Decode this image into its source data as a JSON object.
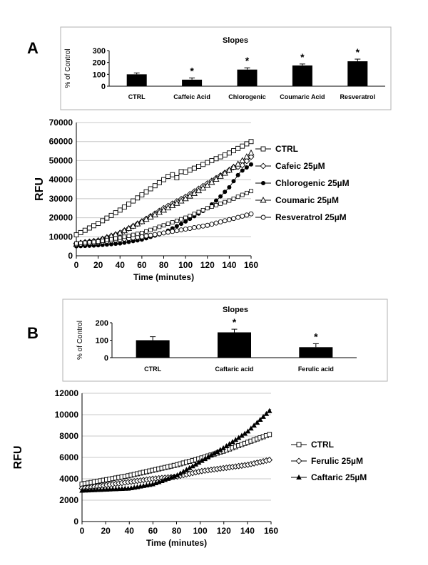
{
  "panels": {
    "a": {
      "label": "A"
    },
    "b": {
      "label": "B"
    }
  },
  "chart_data": [
    {
      "id": "a_slopes",
      "type": "bar",
      "title": "Slopes",
      "ylabel": "% of Control",
      "xlabel": "",
      "categories": [
        "CTRL",
        "Caffeic Acid",
        "Chlorogenic",
        "Coumaric Acid",
        "Resveratrol"
      ],
      "values": [
        100,
        55,
        140,
        175,
        210
      ],
      "errors": [
        12,
        15,
        15,
        12,
        18
      ],
      "significant": [
        false,
        true,
        true,
        true,
        true
      ],
      "significance_marker": "*",
      "ylim": [
        0,
        300
      ],
      "yticks": [
        "0",
        "100",
        "200",
        "300"
      ],
      "bar_color": "#000000",
      "grid": false,
      "box": true
    },
    {
      "id": "a_rfu",
      "type": "line",
      "title": "",
      "ylabel": "RFU",
      "xlabel": "Time (minutes)",
      "xlim": [
        0,
        160
      ],
      "ylim": [
        0,
        70000
      ],
      "xticks": [
        "0",
        "20",
        "40",
        "60",
        "80",
        "100",
        "120",
        "140",
        "160"
      ],
      "yticks": [
        "0",
        "10000",
        "20000",
        "30000",
        "40000",
        "50000",
        "60000",
        "70000"
      ],
      "grid": true,
      "legend_position": "right",
      "series": [
        {
          "name": "CTRL",
          "marker": "square-open",
          "points": [
            [
              0,
              11000
            ],
            [
              20,
              17000
            ],
            [
              40,
              24000
            ],
            [
              60,
              32000
            ],
            [
              80,
              40000
            ],
            [
              87,
              43000
            ],
            [
              92,
              41000
            ],
            [
              97,
              45000
            ],
            [
              100,
              44000
            ],
            [
              120,
              49000
            ],
            [
              140,
              54000
            ],
            [
              160,
              60000
            ]
          ]
        },
        {
          "name": "Cafeic 25µM",
          "marker": "diamond-open",
          "points": [
            [
              0,
              6500
            ],
            [
              20,
              8000
            ],
            [
              40,
              12000
            ],
            [
              60,
              18000
            ],
            [
              80,
              25000
            ],
            [
              100,
              31000
            ],
            [
              120,
              38000
            ],
            [
              140,
              45000
            ],
            [
              145,
              47000
            ],
            [
              150,
              46500
            ],
            [
              160,
              52000
            ]
          ]
        },
        {
          "name": "Chlorogenic 25µM",
          "marker": "circle-filled",
          "points": [
            [
              0,
              5000
            ],
            [
              20,
              5500
            ],
            [
              40,
              6500
            ],
            [
              60,
              8500
            ],
            [
              80,
              12000
            ],
            [
              100,
              18000
            ],
            [
              120,
              25000
            ],
            [
              130,
              30000
            ],
            [
              140,
              36000
            ],
            [
              150,
              44000
            ],
            [
              160,
              48000
            ]
          ]
        },
        {
          "name": "Coumaric 25µM",
          "marker": "triangle-open",
          "points": [
            [
              0,
              6000
            ],
            [
              20,
              8000
            ],
            [
              40,
              12000
            ],
            [
              60,
              18000
            ],
            [
              80,
              24000
            ],
            [
              100,
              30000
            ],
            [
              120,
              37000
            ],
            [
              140,
              45000
            ],
            [
              150,
              49000
            ],
            [
              160,
              54000
            ]
          ]
        },
        {
          "name": "Resveratrol 25µM",
          "marker": "circle-open",
          "points": [
            [
              0,
              6000
            ],
            [
              20,
              7000
            ],
            [
              40,
              8500
            ],
            [
              60,
              10000
            ],
            [
              80,
              12000
            ],
            [
              100,
              14000
            ],
            [
              120,
              16000
            ],
            [
              140,
              19000
            ],
            [
              160,
              22000
            ]
          ]
        },
        {
          "name": "",
          "marker": "square-open-small",
          "points": [
            [
              0,
              6500
            ],
            [
              20,
              7500
            ],
            [
              40,
              9500
            ],
            [
              60,
              12000
            ],
            [
              80,
              16000
            ],
            [
              100,
              20000
            ],
            [
              120,
              25000
            ],
            [
              140,
              29000
            ],
            [
              160,
              34000
            ]
          ]
        }
      ]
    },
    {
      "id": "b_slopes",
      "type": "bar",
      "title": "Slopes",
      "ylabel": "% of Control",
      "xlabel": "",
      "categories": [
        "CTRL",
        "Caftaric acid",
        "Ferulic acid"
      ],
      "values": [
        100,
        145,
        60
      ],
      "errors": [
        20,
        18,
        20
      ],
      "significant": [
        false,
        true,
        true
      ],
      "significance_marker": "*",
      "ylim": [
        0,
        200
      ],
      "yticks": [
        "0",
        "100",
        "200"
      ],
      "bar_color": "#000000",
      "grid": false,
      "box": true
    },
    {
      "id": "b_rfu",
      "type": "line",
      "title": "",
      "ylabel": "RFU",
      "xlabel": "Time (minutes)",
      "xlim": [
        0,
        160
      ],
      "ylim": [
        0,
        12000
      ],
      "xticks": [
        "0",
        "20",
        "40",
        "60",
        "80",
        "100",
        "120",
        "140",
        "160"
      ],
      "yticks": [
        "0",
        "2000",
        "4000",
        "6000",
        "8000",
        "10000",
        "12000"
      ],
      "grid": true,
      "legend_position": "right",
      "series": [
        {
          "name": "CTRL",
          "marker": "square-open",
          "points": [
            [
              0,
              3500
            ],
            [
              20,
              3900
            ],
            [
              40,
              4300
            ],
            [
              60,
              4800
            ],
            [
              80,
              5300
            ],
            [
              100,
              5900
            ],
            [
              120,
              6600
            ],
            [
              140,
              7400
            ],
            [
              160,
              8200
            ]
          ]
        },
        {
          "name": "Ferulic 25µM",
          "marker": "diamond-open",
          "points": [
            [
              0,
              3100
            ],
            [
              20,
              3400
            ],
            [
              40,
              3700
            ],
            [
              60,
              4000
            ],
            [
              70,
              4100
            ],
            [
              80,
              4200
            ],
            [
              100,
              4700
            ],
            [
              120,
              5000
            ],
            [
              140,
              5300
            ],
            [
              160,
              5800
            ]
          ]
        },
        {
          "name": "Caftaric 25µM",
          "marker": "triangle-filled",
          "points": [
            [
              0,
              2900
            ],
            [
              20,
              3000
            ],
            [
              40,
              3100
            ],
            [
              60,
              3500
            ],
            [
              80,
              4300
            ],
            [
              100,
              5600
            ],
            [
              120,
              6900
            ],
            [
              140,
              8400
            ],
            [
              160,
              10500
            ]
          ]
        }
      ]
    }
  ]
}
